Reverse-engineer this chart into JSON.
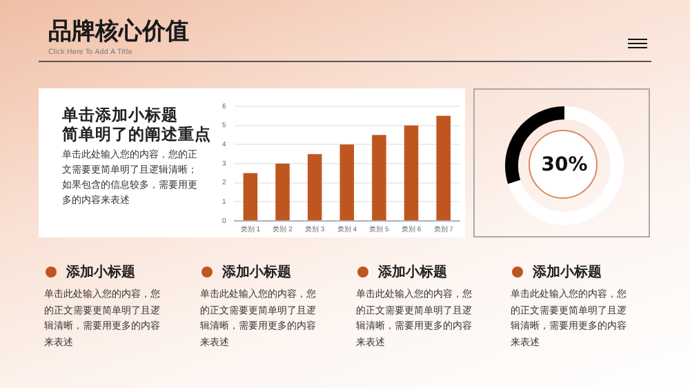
{
  "chart_data": [
    {
      "type": "other",
      "title": "品牌核心价值",
      "subtitle": "Click Here To Add A Title",
      "annotations": [
        "单击添加小标题",
        "简单明了的阐述重点",
        "单击此处输入您的内容，您的正文需要更简单明了且逻辑清晰；如果包含的信息较多，需要用更多的内容来表述",
        "添加小标题",
        "单击此处输入您的内容，您的正文需要更简单明了且逻辑清晰，需要用更多的内容来表述",
        "添加小标题",
        "单击此处输入您的内容，您的正文需要更简单明了且逻辑清晰，需要用更多的内容来表述",
        "添加小标题",
        "单击此处输入您的内容，您的正文需要更简单明了且逻辑清晰，需要用更多的内容来表述",
        "添加小标题",
        "单击此处输入您的内容，您的正文需要更简单明了且逻辑清晰，需要用更多的内容来表述"
      ]
    },
    {
      "type": "bar",
      "categories": [
        "类别 1",
        "类别 2",
        "类别 3",
        "类别 4",
        "类别 5",
        "类别 6",
        "类别 7"
      ],
      "values": [
        2.5,
        3,
        3.5,
        4,
        4.5,
        5,
        5.5
      ],
      "color": "#c0561f",
      "ylim": [
        0,
        6
      ],
      "yticks": [
        0,
        1,
        2,
        3,
        4,
        5,
        6
      ],
      "grid": "y"
    },
    {
      "type": "donut",
      "categories": [
        null,
        null
      ],
      "values": [
        30,
        70
      ],
      "colors": [
        "#000000",
        "#ffffff"
      ],
      "value_labels": [
        "30%",
        null
      ]
    }
  ]
}
